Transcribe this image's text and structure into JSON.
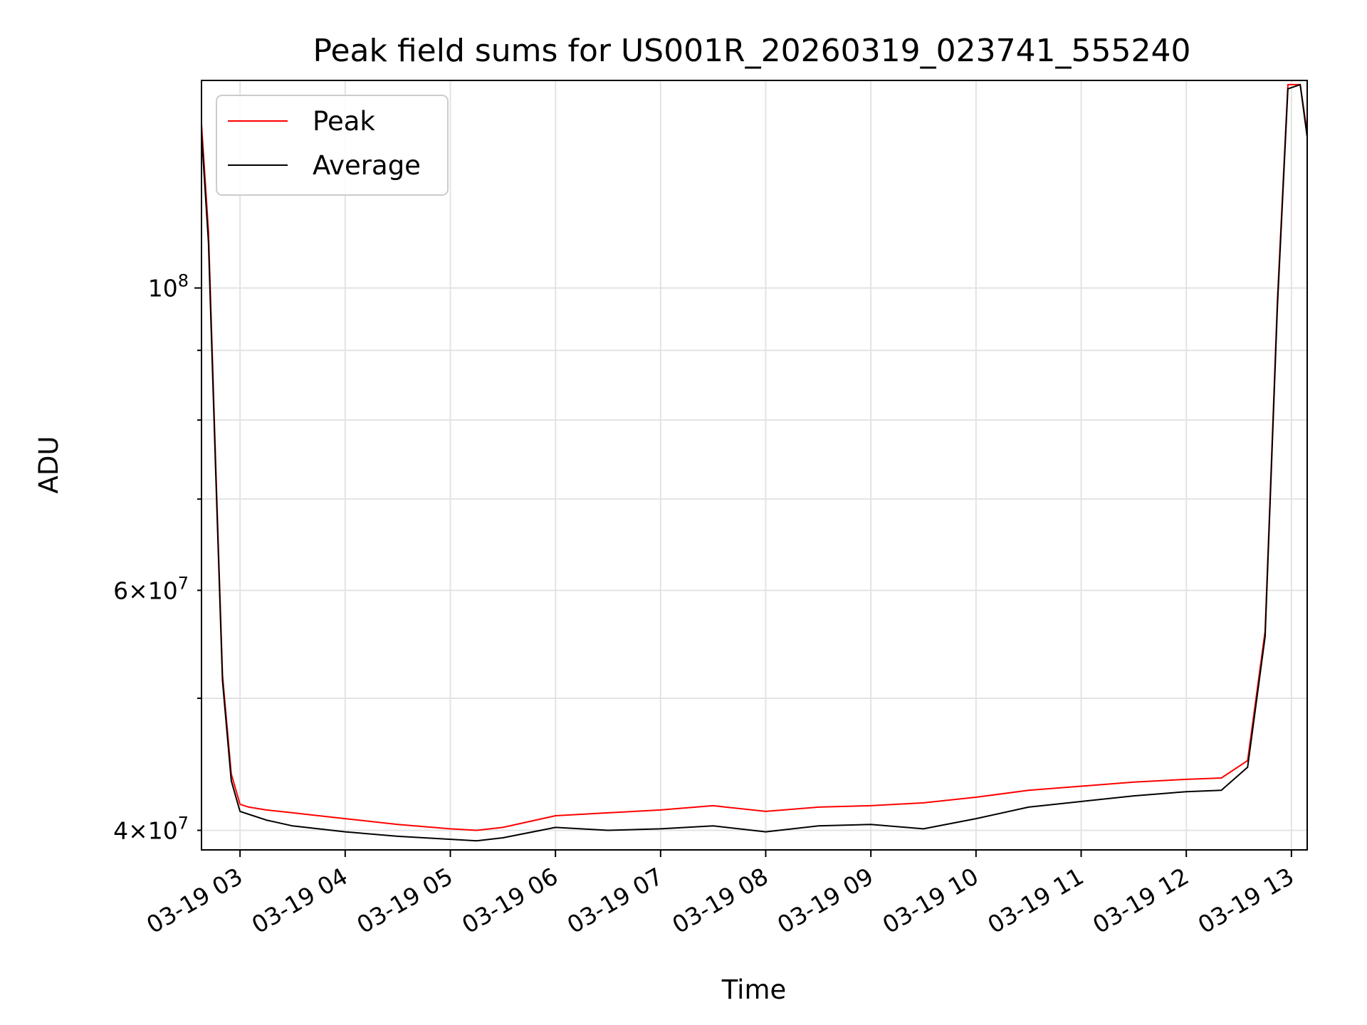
{
  "chart_data": {
    "type": "line",
    "title": "Peak field sums for US001R_20260319_023741_555240",
    "xlabel": "Time",
    "ylabel": "ADU",
    "y_scale": "log",
    "ylim": [
      38700000,
      142000000
    ],
    "xlim": [
      "03-19 02:38",
      "03-19 13:09"
    ],
    "grid": true,
    "legend_position": "top-left",
    "x_ticks": [
      "03-19 03",
      "03-19 04",
      "03-19 05",
      "03-19 06",
      "03-19 07",
      "03-19 08",
      "03-19 09",
      "03-19 10",
      "03-19 11",
      "03-19 12",
      "03-19 13"
    ],
    "y_ticks_major": [
      {
        "value": 100000000,
        "label": "10^8"
      }
    ],
    "y_ticks_labeled_minor": [
      {
        "value": 60000000,
        "label": "6×10^7"
      },
      {
        "value": 40000000,
        "label": "4×10^7"
      }
    ],
    "y_ticks_minor_unlabeled": [
      50000000,
      70000000,
      80000000,
      90000000
    ],
    "x": [
      "02:38",
      "02:42",
      "02:46",
      "02:50",
      "02:55",
      "03:00",
      "03:05",
      "03:15",
      "03:30",
      "04:00",
      "04:30",
      "05:00",
      "05:15",
      "05:30",
      "06:00",
      "06:30",
      "07:00",
      "07:30",
      "08:00",
      "08:30",
      "09:00",
      "09:30",
      "10:00",
      "10:30",
      "11:00",
      "11:30",
      "12:00",
      "12:20",
      "12:35",
      "12:45",
      "12:52",
      "12:58",
      "13:05",
      "13:09"
    ],
    "series": [
      {
        "name": "Peak",
        "color": "#ff0000",
        "values": [
          132000000,
          110000000,
          75000000,
          52000000,
          44000000,
          41800000,
          41600000,
          41400000,
          41200000,
          40800000,
          40400000,
          40100000,
          40000000,
          40200000,
          41000000,
          41200000,
          41400000,
          41700000,
          41300000,
          41600000,
          41700000,
          41900000,
          42300000,
          42800000,
          43100000,
          43400000,
          43600000,
          43700000,
          45000000,
          56000000,
          98000000,
          141000000,
          141000000,
          130000000
        ]
      },
      {
        "name": "Average",
        "color": "#000000",
        "values": [
          130000000,
          108000000,
          74000000,
          51500000,
          43500000,
          41300000,
          41100000,
          40700000,
          40300000,
          39900000,
          39600000,
          39400000,
          39300000,
          39500000,
          40200000,
          40000000,
          40100000,
          40300000,
          39900000,
          40300000,
          40400000,
          40100000,
          40800000,
          41600000,
          42000000,
          42400000,
          42700000,
          42800000,
          44500000,
          55500000,
          97000000,
          140000000,
          141000000,
          129000000
        ]
      }
    ]
  }
}
